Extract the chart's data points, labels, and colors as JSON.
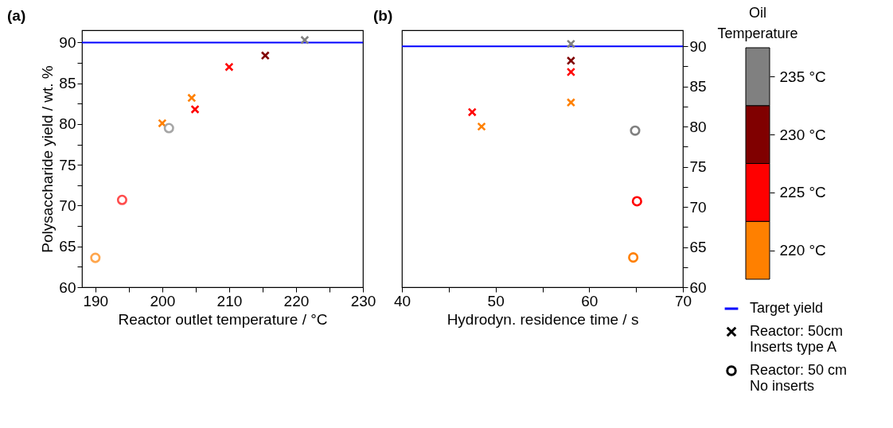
{
  "chart_data": [
    {
      "type": "scatter",
      "title": "(a)",
      "xlabel": "Reactor outlet temperature / °C",
      "ylabel": "Polysaccharide yield / wt. %",
      "xlim": [
        188,
        230
      ],
      "ylim": [
        60,
        91.5
      ],
      "xticks": [
        190,
        {
          "value": 195,
          "label": null
        },
        200,
        {
          "value": 205,
          "label": null
        },
        210,
        {
          "value": 215,
          "label": null
        },
        220,
        {
          "value": 225,
          "label": null
        },
        230
      ],
      "yticks": [
        60,
        {
          "value": 62.5,
          "label": null
        },
        65,
        {
          "value": 67.5,
          "label": null
        },
        70,
        {
          "value": 72.5,
          "label": null
        },
        75,
        {
          "value": 77.5,
          "label": null
        },
        80,
        {
          "value": 82.5,
          "label": null
        },
        85,
        {
          "value": 87.5,
          "label": null
        },
        90
      ],
      "grid": false,
      "ref_lines": [
        {
          "axis": "y",
          "value": 90,
          "color": "#0000ff"
        }
      ],
      "series": [
        {
          "marker": "cross",
          "x": [
            200,
            204.4,
            204.9,
            210,
            215.4,
            221.3
          ],
          "values": [
            80.1,
            83.2,
            81.8,
            87,
            88.4,
            90.3
          ],
          "colors": [
            "#ff8000",
            "#ff8000",
            "#ff0000",
            "#ff0000",
            "#800000",
            "#808080"
          ]
        },
        {
          "marker": "circle",
          "x": [
            190,
            194,
            201
          ],
          "values": [
            63.6,
            70.7,
            79.5
          ],
          "colors": [
            "#ffa64d",
            "#ff4d4d",
            "#a6a6a6"
          ]
        }
      ]
    },
    {
      "type": "scatter",
      "title": "(b)",
      "xlabel": "Hydrodyn. residence time / s",
      "xlim": [
        40,
        70
      ],
      "ylim": [
        60,
        92
      ],
      "xticks": [
        40,
        {
          "value": 45,
          "label": null
        },
        50,
        {
          "value": 55,
          "label": null
        },
        60,
        {
          "value": 65,
          "label": null
        },
        70
      ],
      "yticks": [
        60,
        {
          "value": 62.5,
          "label": null
        },
        65,
        {
          "value": 67.5,
          "label": null
        },
        70,
        {
          "value": 72.5,
          "label": null
        },
        75,
        {
          "value": 77.5,
          "label": null
        },
        80,
        {
          "value": 82.5,
          "label": null
        },
        85,
        {
          "value": 87.5,
          "label": null
        },
        90
      ],
      "grid": false,
      "legend": "bottom right",
      "clabel": "Oil Temperature",
      "clim": [
        217.5,
        237.5
      ],
      "cticks": [
        {
          "value": 220,
          "label": "220 °C"
        },
        {
          "value": 225,
          "label": "225 °C"
        },
        {
          "value": 230,
          "label": "230 °C"
        },
        {
          "value": 235,
          "label": "235 °C"
        }
      ],
      "colors": [
        "#ff8000",
        "#ff0000",
        "#800000",
        "#808080"
      ],
      "ref_lines": [
        {
          "axis": "y",
          "value": 90,
          "label": "Target yield",
          "color": "#0000ff"
        }
      ],
      "series": [
        {
          "name": "Reactor: 50cm\nInserts type A",
          "marker": "cross",
          "x": [
            47.5,
            48.5,
            58.05,
            58.05,
            58.05,
            58.05
          ],
          "values": [
            81.8,
            80,
            90.3,
            88.2,
            86.8,
            83
          ],
          "colors": [
            "#ff0000",
            "#ff8000",
            "#808080",
            "#800000",
            "#ff0000",
            "#ff8000"
          ]
        },
        {
          "name": "Reactor: 50 cm\nNo inserts",
          "marker": "circle",
          "x": [
            64.9,
            65.1,
            64.7
          ],
          "values": [
            79.5,
            70.7,
            63.7
          ],
          "colors": [
            "#808080",
            "#ff0000",
            "#ff8000"
          ]
        }
      ]
    }
  ]
}
